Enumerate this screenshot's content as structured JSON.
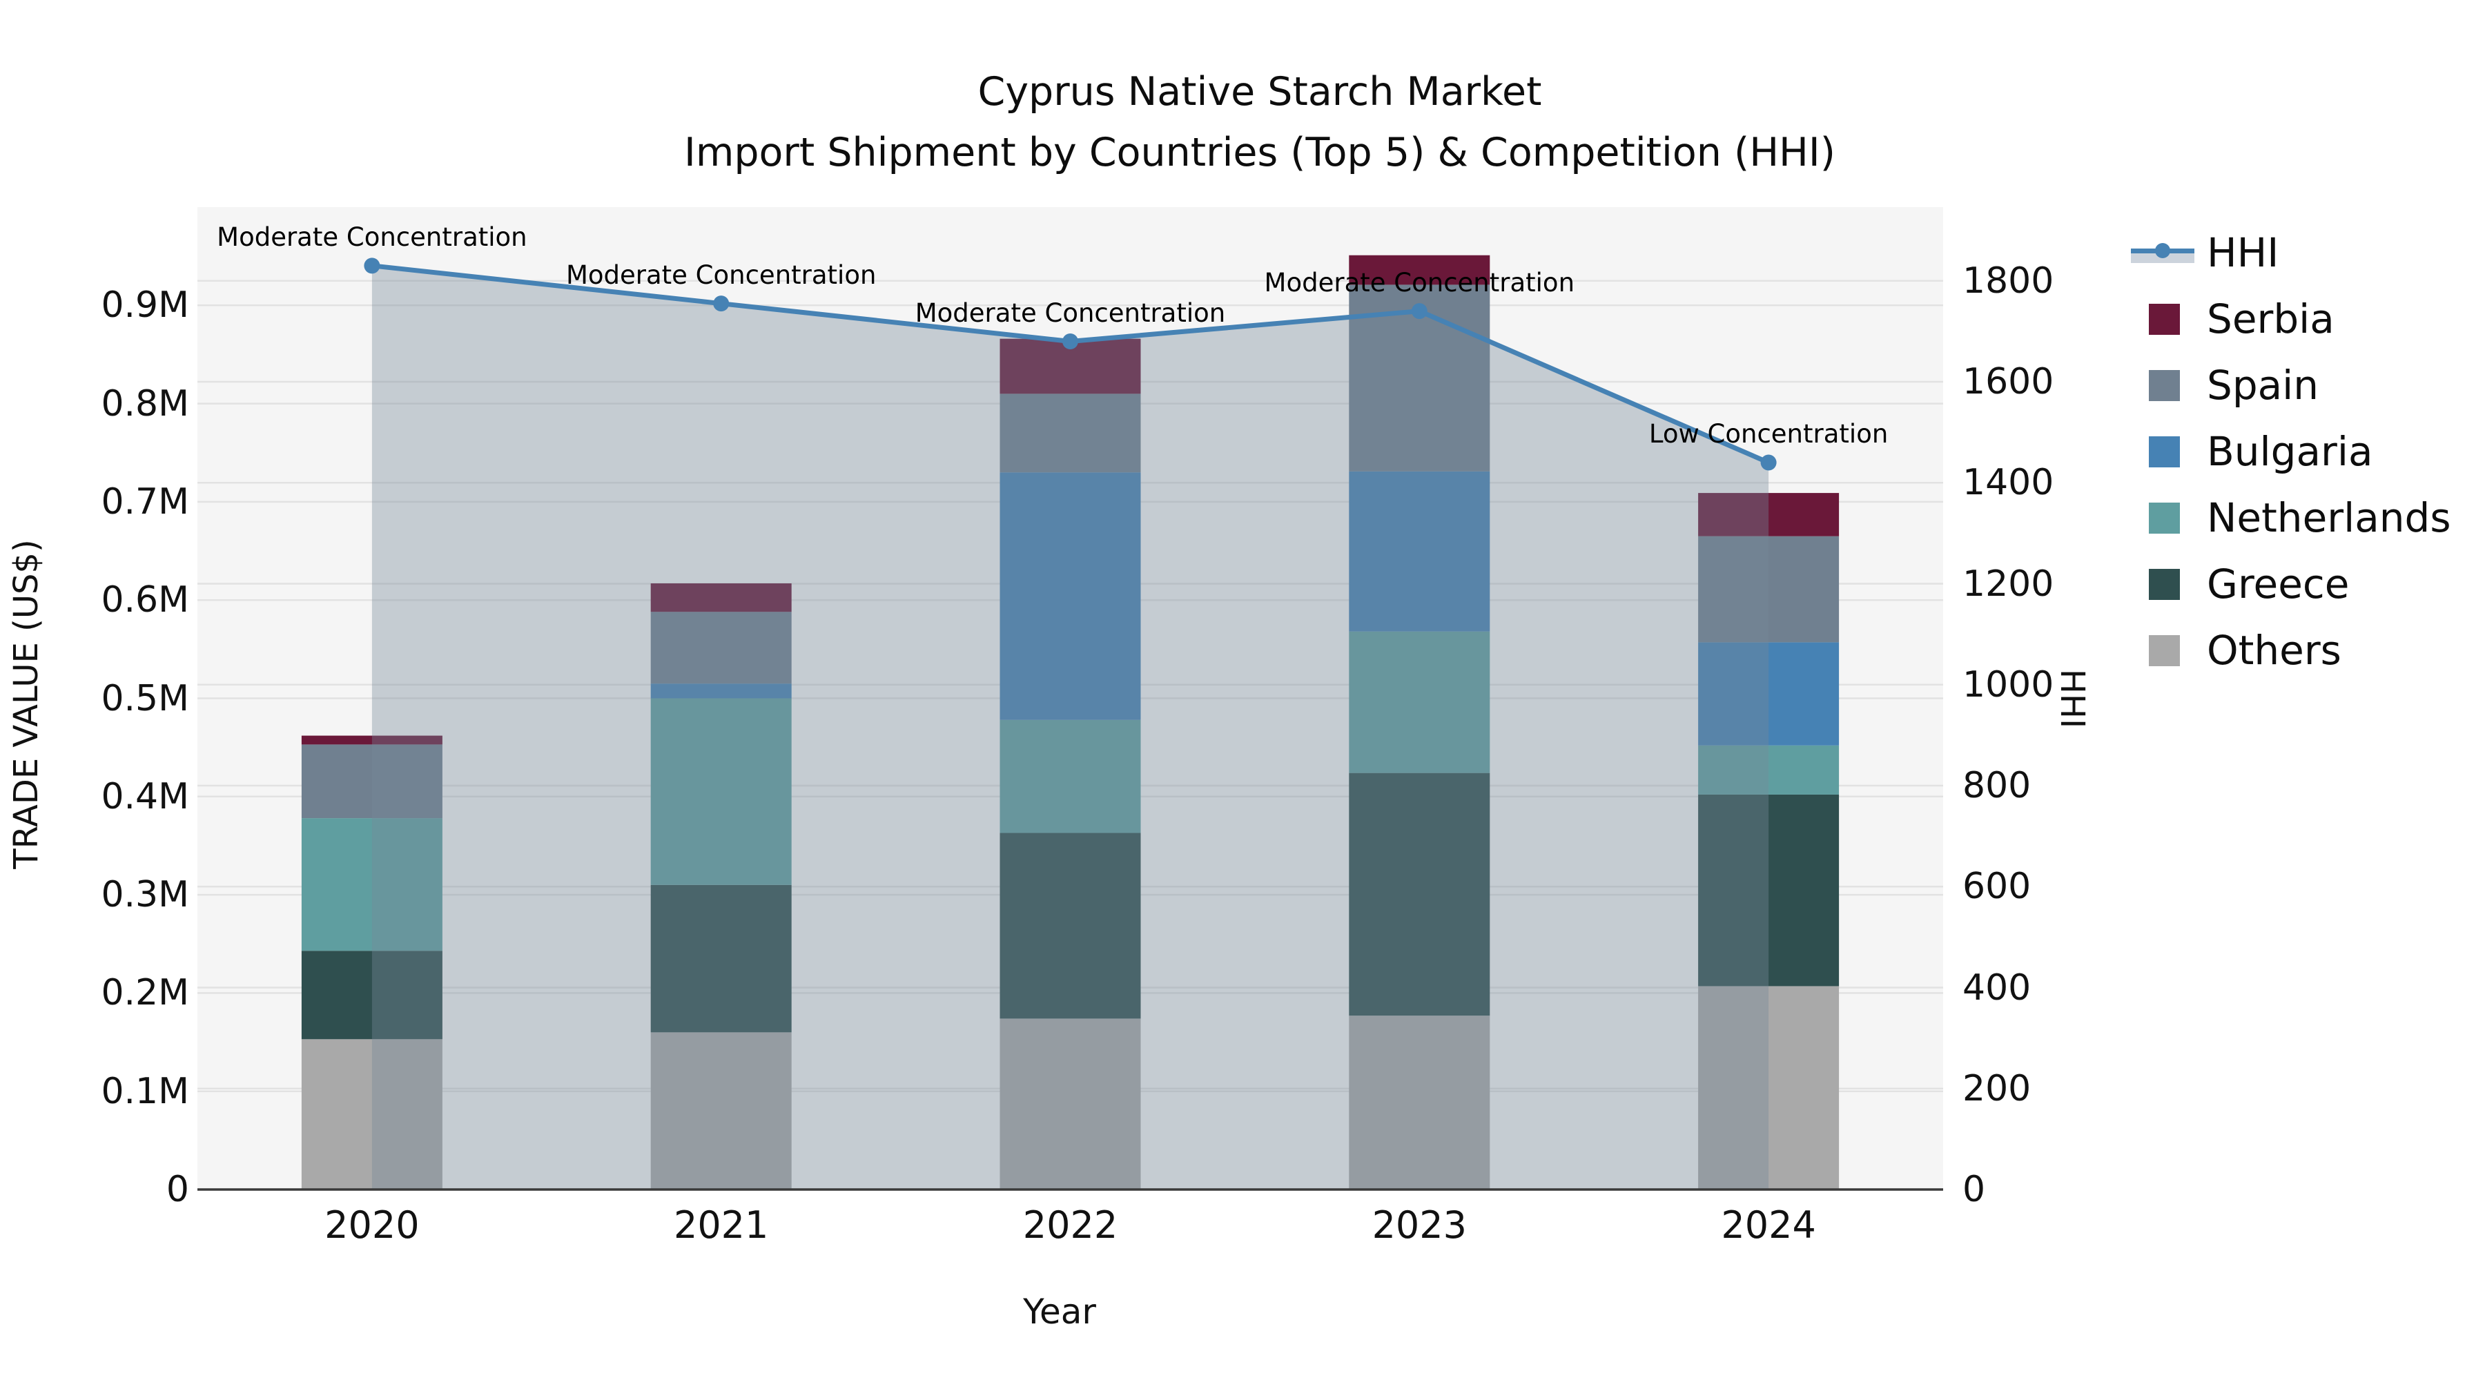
{
  "chart_data": {
    "type": "bar+line (stacked bars, dual axis)",
    "title": "Cyprus Native Starch Market",
    "subtitle": "Import Shipment by Countries (Top 5) & Competition (HHI)",
    "categories": [
      "2020",
      "2021",
      "2022",
      "2023",
      "2024"
    ],
    "series": [
      {
        "name": "Others",
        "color": "#A9A9A9",
        "values": [
          153000,
          160000,
          174000,
          177000,
          207000
        ]
      },
      {
        "name": "Greece",
        "color": "#2F4F4F",
        "values": [
          90000,
          150000,
          189000,
          247000,
          195000
        ]
      },
      {
        "name": "Netherlands",
        "color": "#5F9EA0",
        "values": [
          135000,
          190000,
          115000,
          144000,
          50000
        ]
      },
      {
        "name": "Bulgaria",
        "color": "#4682B4",
        "values": [
          0,
          15000,
          252000,
          163000,
          105000
        ]
      },
      {
        "name": "Spain",
        "color": "#708090",
        "values": [
          75000,
          73000,
          80000,
          190000,
          108000
        ]
      },
      {
        "name": "Serbia",
        "color": "#6A1839",
        "values": [
          9000,
          29000,
          56000,
          30000,
          44000
        ]
      }
    ],
    "line_series": {
      "name": "HHI",
      "axis": "right",
      "color": "#4682B4",
      "fill_color": "rgba(119,136,153,0.38)",
      "values": [
        1830,
        1755,
        1680,
        1740,
        1440
      ]
    },
    "annotations": [
      "Moderate Concentration",
      "Moderate Concentration",
      "Moderate Concentration",
      "Moderate Concentration",
      "Low Concentration"
    ],
    "axes": {
      "left": {
        "title": "TRADE VALUE (US$)",
        "tick_labels": [
          "0",
          "0.1M",
          "0.2M",
          "0.3M",
          "0.4M",
          "0.5M",
          "0.6M",
          "0.7M",
          "0.8M",
          "0.9M"
        ],
        "tick_values": [
          0,
          100000,
          200000,
          300000,
          400000,
          500000,
          600000,
          700000,
          800000,
          900000
        ],
        "range": [
          0,
          1000000
        ]
      },
      "right": {
        "title": "HHI",
        "tick_labels": [
          "0",
          "200",
          "400",
          "600",
          "800",
          "1000",
          "1200",
          "1400",
          "1600",
          "1800"
        ],
        "tick_values": [
          0,
          200,
          400,
          600,
          800,
          1000,
          1200,
          1400,
          1600,
          1800
        ],
        "range": [
          0,
          1946
        ]
      },
      "x": {
        "title": "Year"
      }
    },
    "legend": {
      "items": [
        {
          "label": "HHI",
          "type": "line+fill",
          "color": "#4682B4",
          "fill_color": "#ccd3dc"
        },
        {
          "label": "Serbia",
          "type": "swatch",
          "color": "#6A1839"
        },
        {
          "label": "Spain",
          "type": "swatch",
          "color": "#708090"
        },
        {
          "label": "Bulgaria",
          "type": "swatch",
          "color": "#4682B4"
        },
        {
          "label": "Netherlands",
          "type": "swatch",
          "color": "#5F9EA0"
        },
        {
          "label": "Greece",
          "type": "swatch",
          "color": "#2F4F4F"
        },
        {
          "label": "Others",
          "type": "swatch",
          "color": "#A9A9A9"
        }
      ]
    },
    "style": {
      "plot_bg": "#f5f5f5",
      "grid_color": "#e2e2e2",
      "axis_line_color": "#3a3a3a"
    },
    "grid": "horizontal, both axes"
  }
}
